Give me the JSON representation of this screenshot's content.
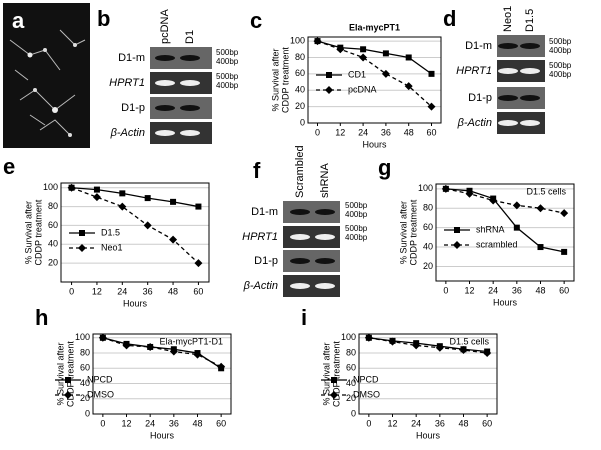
{
  "image_panel": {
    "letter": "a"
  },
  "gels": [
    {
      "letter": "b",
      "lanes": [
        "pcDNA",
        "D1"
      ],
      "rows": [
        "D1-m",
        "HPRT1",
        "D1-p",
        "β-Actin"
      ],
      "ladder": [
        "500bp",
        "400bp",
        "500bp",
        "400bp"
      ]
    },
    {
      "letter": "d",
      "lanes": [
        "Neo1",
        "D1.5"
      ],
      "rows": [
        "D1-m",
        "HPRT1",
        "D1-p",
        "β-Actin"
      ],
      "ladder": [
        "500bp",
        "400bp",
        "500bp",
        "400bp"
      ]
    },
    {
      "letter": "f",
      "lanes": [
        "Scrambled",
        "shRNA"
      ],
      "rows": [
        "D1-m",
        "HPRT1",
        "D1-p",
        "β-Actin"
      ],
      "ladder": [
        "500bp",
        "400bp",
        "500bp",
        "400bp"
      ]
    }
  ],
  "chart_data": [
    {
      "letter": "c",
      "type": "line",
      "title": "Ela-mycPT1",
      "xlabel": "Hours",
      "ylabel": [
        "% Survival after",
        "CDDP treatment"
      ],
      "x": [
        0,
        12,
        24,
        36,
        48,
        60
      ],
      "xlim": [
        -5,
        65
      ],
      "xticks": [
        0,
        12,
        24,
        36,
        48,
        60
      ],
      "ylim": [
        0,
        105
      ],
      "yticks": [
        0,
        20,
        40,
        60,
        80,
        100
      ],
      "grid": true,
      "legend": "lower left",
      "series": [
        {
          "name": "CD1",
          "color": "#000000",
          "linestyle": "solid",
          "marker": "square",
          "values": [
            100,
            92,
            90,
            85,
            80,
            60
          ]
        },
        {
          "name": "pcDNA",
          "color": "#000000",
          "linestyle": "dashed",
          "marker": "diamond",
          "values": [
            100,
            90,
            80,
            60,
            45,
            20
          ]
        }
      ]
    },
    {
      "letter": "e",
      "type": "line",
      "xlabel": "Hours",
      "ylabel": [
        "% Survival after",
        "CDDP treatment"
      ],
      "x": [
        0,
        12,
        24,
        36,
        48,
        60
      ],
      "xlim": [
        -5,
        65
      ],
      "xticks": [
        0,
        12,
        24,
        36,
        48,
        60
      ],
      "ylim": [
        0,
        105
      ],
      "yticks": [
        20,
        40,
        60,
        80,
        100
      ],
      "grid": true,
      "legend": "lower left",
      "series": [
        {
          "name": "D1.5",
          "color": "#000000",
          "linestyle": "solid",
          "marker": "square",
          "values": [
            100,
            98,
            94,
            89,
            85,
            80
          ]
        },
        {
          "name": "Neo1",
          "color": "#000000",
          "linestyle": "dashed",
          "marker": "diamond",
          "values": [
            100,
            90,
            80,
            60,
            45,
            20
          ]
        }
      ]
    },
    {
      "letter": "g",
      "type": "line",
      "title": "D1.5 cells",
      "xlabel": "Hours",
      "ylabel": [
        "% Survival after",
        "CDDP treatment"
      ],
      "x": [
        0,
        12,
        24,
        36,
        48,
        60
      ],
      "xlim": [
        -5,
        65
      ],
      "xticks": [
        0,
        12,
        24,
        36,
        48,
        60
      ],
      "ylim": [
        5,
        105
      ],
      "yticks": [
        20,
        40,
        60,
        80,
        100
      ],
      "grid": true,
      "legend": "lower left",
      "series": [
        {
          "name": "shRNA",
          "color": "#000000",
          "linestyle": "solid",
          "marker": "square",
          "values": [
            100,
            98,
            90,
            60,
            40,
            35
          ]
        },
        {
          "name": "scrambled",
          "color": "#000000",
          "linestyle": "dashed",
          "marker": "diamond",
          "values": [
            100,
            95,
            88,
            83,
            80,
            75
          ]
        }
      ]
    },
    {
      "letter": "h",
      "type": "line",
      "title": "Ela-mycPT1-D1",
      "xlabel": "Hours",
      "ylabel": [
        "% Survival after",
        "CDDP treatment"
      ],
      "x": [
        0,
        12,
        24,
        36,
        48,
        60
      ],
      "xlim": [
        -5,
        65
      ],
      "xticks": [
        0,
        12,
        24,
        36,
        48,
        60
      ],
      "ylim": [
        0,
        105
      ],
      "yticks": [
        0,
        20,
        40,
        60,
        80,
        100
      ],
      "grid": true,
      "legend": "lower left",
      "series": [
        {
          "name": "NPCD",
          "color": "#000000",
          "linestyle": "solid",
          "marker": "square",
          "values": [
            100,
            92,
            88,
            85,
            80,
            60
          ]
        },
        {
          "name": "DMSO",
          "color": "#000000",
          "linestyle": "dashed",
          "marker": "diamond",
          "values": [
            100,
            90,
            88,
            82,
            78,
            62
          ]
        }
      ]
    },
    {
      "letter": "i",
      "type": "line",
      "title": "D1.5 cells",
      "xlabel": "Hours",
      "ylabel": [
        "% Survival after",
        "CDDP treatment"
      ],
      "x": [
        0,
        12,
        24,
        36,
        48,
        60
      ],
      "xlim": [
        -5,
        65
      ],
      "xticks": [
        0,
        12,
        24,
        36,
        48,
        60
      ],
      "ylim": [
        0,
        105
      ],
      "yticks": [
        0,
        20,
        40,
        60,
        80,
        100
      ],
      "grid": true,
      "legend": "lower left",
      "series": [
        {
          "name": "NPCD",
          "color": "#000000",
          "linestyle": "solid",
          "marker": "square",
          "values": [
            100,
            96,
            93,
            89,
            85,
            82
          ]
        },
        {
          "name": "DMSO",
          "color": "#000000",
          "linestyle": "dashed",
          "marker": "diamond",
          "values": [
            100,
            95,
            90,
            87,
            84,
            80
          ]
        }
      ]
    }
  ]
}
